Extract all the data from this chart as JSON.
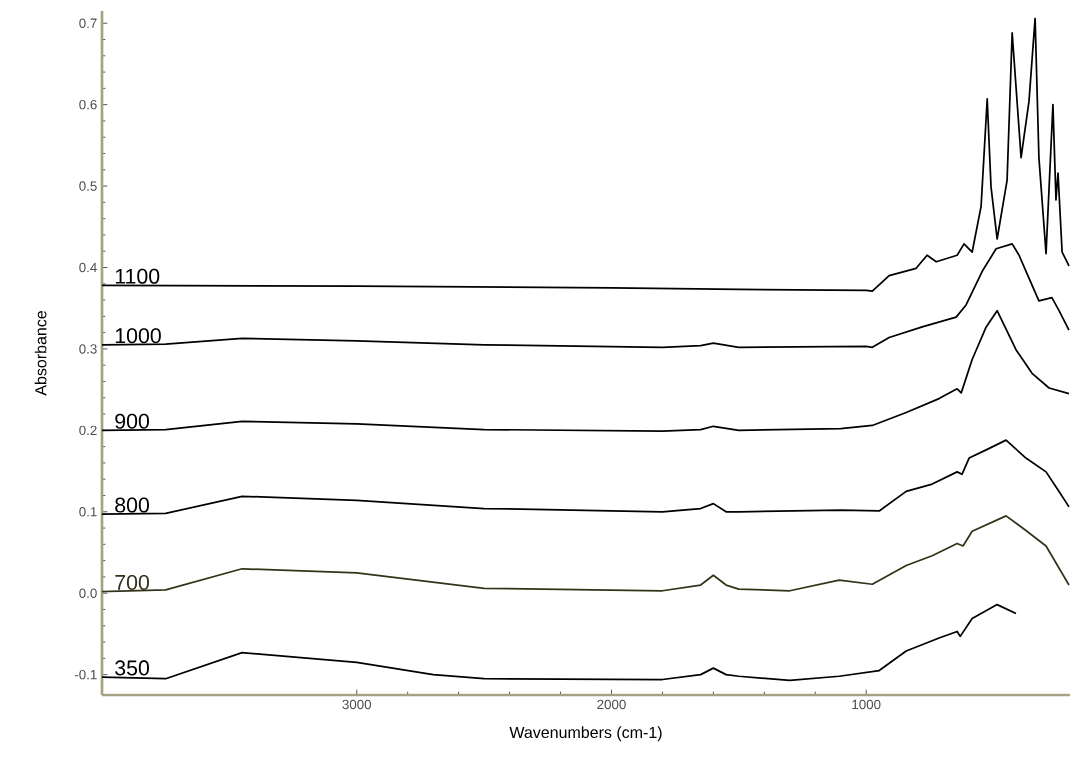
{
  "chart_data": {
    "type": "line",
    "xlabel": "Wavenumbers (cm-1)",
    "ylabel": "Absorbance",
    "xlim": [
      4000,
      200
    ],
    "ylim": [
      -0.125,
      0.715
    ],
    "xticks": [
      3000,
      2000,
      1000
    ],
    "yticks": [
      {
        "value": -0.1,
        "label": "-0.1"
      },
      {
        "value": 0,
        "label": "0.0"
      },
      0.1,
      0.2,
      0.3,
      0.4,
      0.5,
      0.6,
      0.7
    ],
    "legend": false,
    "marker": "none",
    "line_style": "solid",
    "series": [
      {
        "name": "1100",
        "color": "#000000",
        "x": [
          4000,
          3000,
          2000,
          1500,
          1000,
          976,
          910,
          804,
          761,
          725,
          643,
          616,
          584,
          549,
          525,
          510,
          486,
          447,
          427,
          392,
          361,
          337,
          322,
          294,
          267,
          255,
          247,
          231,
          204
        ],
        "values": [
          0.378,
          0.377,
          0.375,
          0.373,
          0.372,
          0.371,
          0.39,
          0.399,
          0.415,
          0.407,
          0.415,
          0.429,
          0.419,
          0.475,
          0.607,
          0.499,
          0.435,
          0.507,
          0.688,
          0.535,
          0.604,
          0.706,
          0.535,
          0.417,
          0.6,
          0.483,
          0.516,
          0.419,
          0.402
        ]
      },
      {
        "name": "1000",
        "color": "#000000",
        "x": [
          4000,
          3750,
          3450,
          3000,
          2500,
          1800,
          1650,
          1600,
          1500,
          1000,
          976,
          910,
          780,
          647,
          608,
          545,
          490,
          427,
          400,
          361,
          322,
          271,
          243,
          204
        ],
        "values": [
          0.305,
          0.306,
          0.313,
          0.31,
          0.305,
          0.302,
          0.304,
          0.307,
          0.302,
          0.303,
          0.302,
          0.314,
          0.327,
          0.339,
          0.354,
          0.395,
          0.423,
          0.429,
          0.415,
          0.387,
          0.359,
          0.363,
          0.347,
          0.323
        ]
      },
      {
        "name": "900",
        "color": "#000000",
        "x": [
          4000,
          3750,
          3450,
          3000,
          2500,
          1800,
          1650,
          1600,
          1500,
          1100,
          976,
          843,
          714,
          643,
          627,
          584,
          529,
          486,
          412,
          349,
          282,
          204
        ],
        "values": [
          0.2,
          0.201,
          0.211,
          0.208,
          0.201,
          0.199,
          0.201,
          0.205,
          0.2,
          0.202,
          0.206,
          0.222,
          0.239,
          0.251,
          0.246,
          0.287,
          0.327,
          0.347,
          0.299,
          0.27,
          0.252,
          0.245
        ]
      },
      {
        "name": "800",
        "color": "#000000",
        "x": [
          4000,
          3750,
          3450,
          3000,
          2500,
          1800,
          1650,
          1600,
          1550,
          1500,
          1100,
          949,
          843,
          741,
          643,
          624,
          596,
          529,
          451,
          373,
          294,
          243,
          204
        ],
        "values": [
          0.097,
          0.098,
          0.119,
          0.114,
          0.104,
          0.1,
          0.104,
          0.11,
          0.1,
          0.1,
          0.102,
          0.101,
          0.125,
          0.134,
          0.149,
          0.146,
          0.166,
          0.176,
          0.188,
          0.166,
          0.149,
          0.125,
          0.106
        ]
      },
      {
        "name": "700",
        "color": "#33331a",
        "x": [
          4000,
          3750,
          3450,
          3000,
          2500,
          1800,
          1650,
          1600,
          1550,
          1500,
          1300,
          1106,
          976,
          843,
          741,
          643,
          620,
          584,
          451,
          373,
          294,
          204
        ],
        "values": [
          0.002,
          0.004,
          0.03,
          0.025,
          0.006,
          0.003,
          0.01,
          0.022,
          0.01,
          0.005,
          0.003,
          0.016,
          0.011,
          0.034,
          0.046,
          0.061,
          0.058,
          0.076,
          0.095,
          0.077,
          0.058,
          0.01
        ]
      },
      {
        "name": "350",
        "color": "#000000",
        "x": [
          4000,
          3750,
          3450,
          3000,
          2700,
          2500,
          1800,
          1650,
          1600,
          1550,
          1500,
          1300,
          1106,
          949,
          843,
          714,
          643,
          631,
          584,
          486,
          412
        ],
        "values": [
          -0.103,
          -0.105,
          -0.073,
          -0.085,
          -0.1,
          -0.105,
          -0.106,
          -0.1,
          -0.092,
          -0.1,
          -0.102,
          -0.107,
          -0.102,
          -0.095,
          -0.071,
          -0.055,
          -0.047,
          -0.053,
          -0.031,
          -0.014,
          -0.025
        ]
      }
    ]
  }
}
